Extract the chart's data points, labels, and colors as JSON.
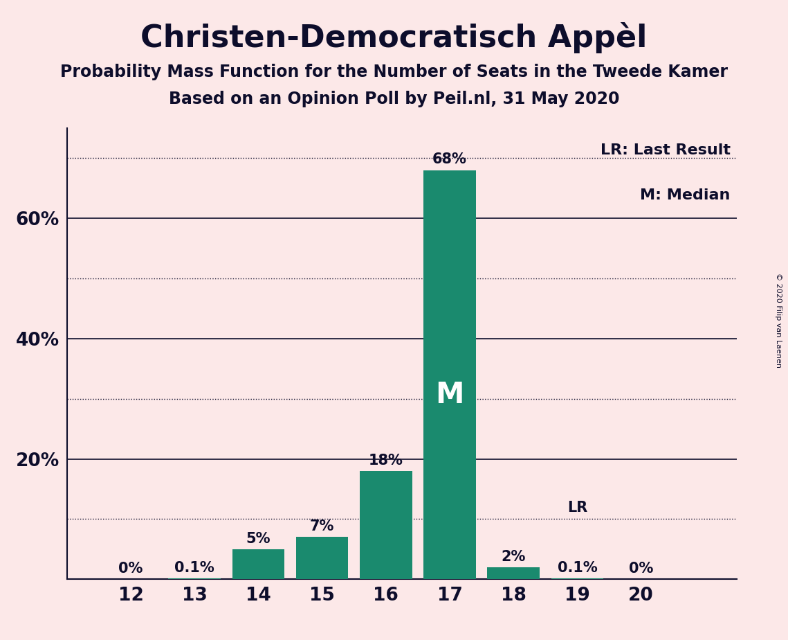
{
  "title": "Christen-Democratisch Appèl",
  "subtitle1": "Probability Mass Function for the Number of Seats in the Tweede Kamer",
  "subtitle2": "Based on an Opinion Poll by Peil.nl, 31 May 2020",
  "copyright": "© 2020 Filip van Laenen",
  "seats": [
    12,
    13,
    14,
    15,
    16,
    17,
    18,
    19,
    20
  ],
  "probabilities": [
    0.0,
    0.1,
    5.0,
    7.0,
    18.0,
    68.0,
    2.0,
    0.1,
    0.0
  ],
  "bar_labels": [
    "0%",
    "0.1%",
    "5%",
    "7%",
    "18%",
    "68%",
    "2%",
    "0.1%",
    "0%"
  ],
  "bar_color": "#1a8a6e",
  "background_color": "#fce8e8",
  "text_color": "#0d0d2b",
  "median_seat": 17,
  "last_result_seat": 19,
  "ylim_max": 75,
  "ytick_positions": [
    20,
    40,
    60
  ],
  "ytick_labels": [
    "20%",
    "40%",
    "60%"
  ],
  "grid_solid": [
    20,
    40,
    60
  ],
  "grid_dotted": [
    10,
    30,
    50,
    70
  ],
  "xlim": [
    11.0,
    21.5
  ],
  "legend_lr": "LR: Last Result",
  "legend_m": "M: Median",
  "bar_width": 0.82
}
